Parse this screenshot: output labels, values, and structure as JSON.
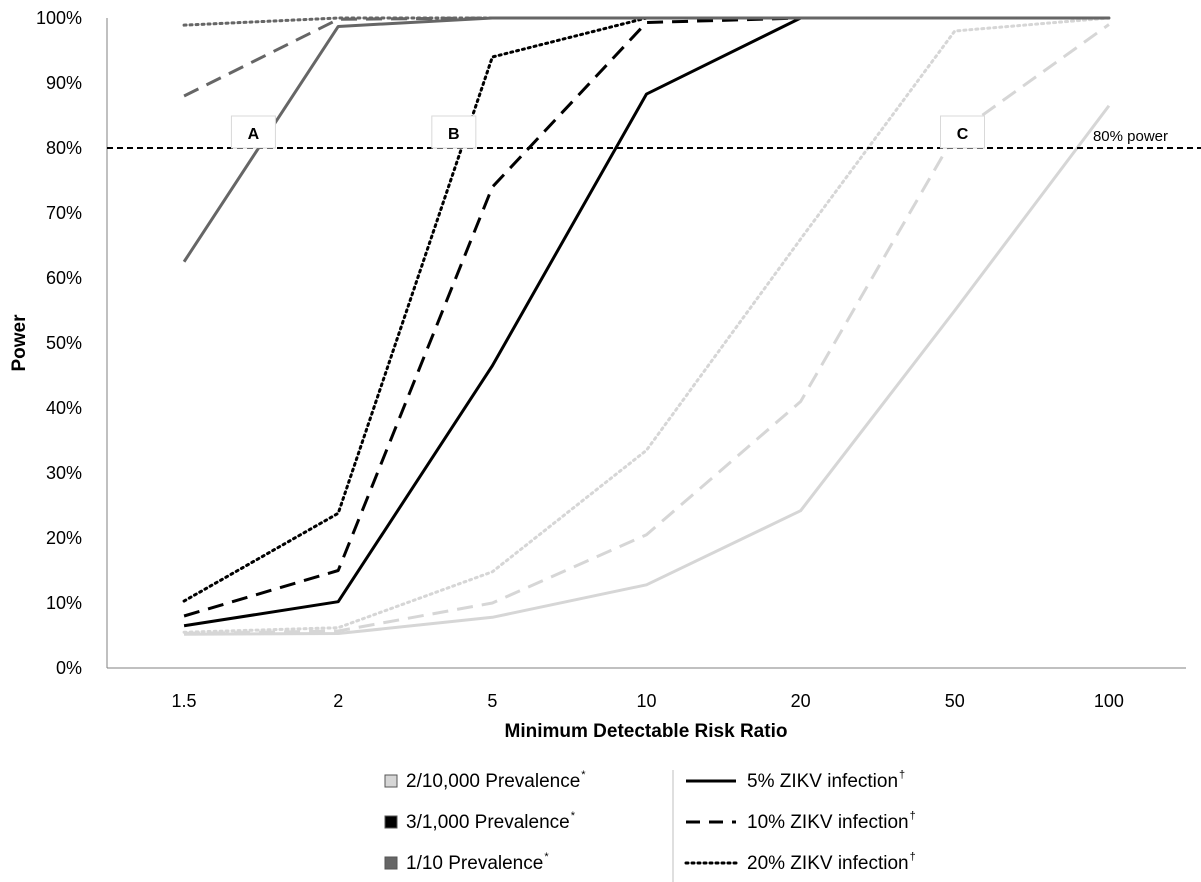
{
  "chart_data": {
    "type": "line",
    "title": "",
    "xlabel": "Minimum Detectable Risk Ratio",
    "ylabel": "Power",
    "categories": [
      "1.5",
      "2",
      "5",
      "10",
      "20",
      "50",
      "100"
    ],
    "ylim": [
      0,
      100
    ],
    "yticks": [
      0,
      10,
      20,
      30,
      40,
      50,
      60,
      70,
      80,
      90,
      100
    ],
    "ytick_suffix": "%",
    "grid": false,
    "reference_line": {
      "value": 80,
      "label": "80% power",
      "style": "dashed"
    },
    "box_labels": [
      {
        "text": "A",
        "category_index": 0.45,
        "y": 80
      },
      {
        "text": "B",
        "category_index": 1.75,
        "y": 80
      },
      {
        "text": "C",
        "category_index": 5.05,
        "y": 80
      }
    ],
    "series": [
      {
        "prevalence": "2/10,000",
        "infection": "5%",
        "color": "#d6d6d6",
        "dash": "solid",
        "values": [
          5.2,
          5.3,
          7.8,
          12.8,
          24.2,
          55.0,
          86.5
        ]
      },
      {
        "prevalence": "2/10,000",
        "infection": "10%",
        "color": "#d6d6d6",
        "dash": "dashed",
        "values": [
          5.3,
          5.7,
          10.0,
          20.5,
          41.0,
          82.0,
          99.0
        ]
      },
      {
        "prevalence": "2/10,000",
        "infection": "20%",
        "color": "#d6d6d6",
        "dash": "dotted",
        "values": [
          5.5,
          6.2,
          14.8,
          33.5,
          66.0,
          98.0,
          100.0
        ]
      },
      {
        "prevalence": "3/1,000",
        "infection": "5%",
        "color": "#000000",
        "dash": "solid",
        "values": [
          6.5,
          10.2,
          46.5,
          88.3,
          100.0,
          100.0,
          100.0
        ]
      },
      {
        "prevalence": "3/1,000",
        "infection": "10%",
        "color": "#000000",
        "dash": "dashed",
        "values": [
          8.0,
          15.0,
          74.0,
          99.3,
          100.0,
          100.0,
          100.0
        ]
      },
      {
        "prevalence": "3/1,000",
        "infection": "20%",
        "color": "#000000",
        "dash": "dotted",
        "values": [
          10.3,
          23.8,
          94.0,
          100.0,
          100.0,
          100.0,
          100.0
        ]
      },
      {
        "prevalence": "1/10",
        "infection": "5%",
        "color": "#666666",
        "dash": "solid",
        "values": [
          62.5,
          98.7,
          100.0,
          100.0,
          100.0,
          100.0,
          100.0
        ]
      },
      {
        "prevalence": "1/10",
        "infection": "10%",
        "color": "#666666",
        "dash": "dashed",
        "values": [
          88.0,
          99.8,
          100.0,
          100.0,
          100.0,
          100.0,
          100.0
        ]
      },
      {
        "prevalence": "1/10",
        "infection": "20%",
        "color": "#666666",
        "dash": "dotted",
        "values": [
          98.9,
          100.0,
          100.0,
          100.0,
          100.0,
          100.0,
          100.0
        ]
      }
    ],
    "legend": {
      "placement": "bottom",
      "prevalence_entries": [
        {
          "label": "2/10,000 Prevalence",
          "mark": "*",
          "color": "#d6d6d6"
        },
        {
          "label": "3/1,000 Prevalence",
          "mark": "*",
          "color": "#000000"
        },
        {
          "label": "1/10 Prevalence",
          "mark": "*",
          "color": "#666666"
        }
      ],
      "infection_entries": [
        {
          "label": "5% ZIKV infection",
          "mark": "†",
          "dash": "solid"
        },
        {
          "label": "10% ZIKV infection",
          "mark": "†",
          "dash": "dashed"
        },
        {
          "label": "20% ZIKV infection",
          "mark": "†",
          "dash": "dotted"
        }
      ]
    }
  }
}
